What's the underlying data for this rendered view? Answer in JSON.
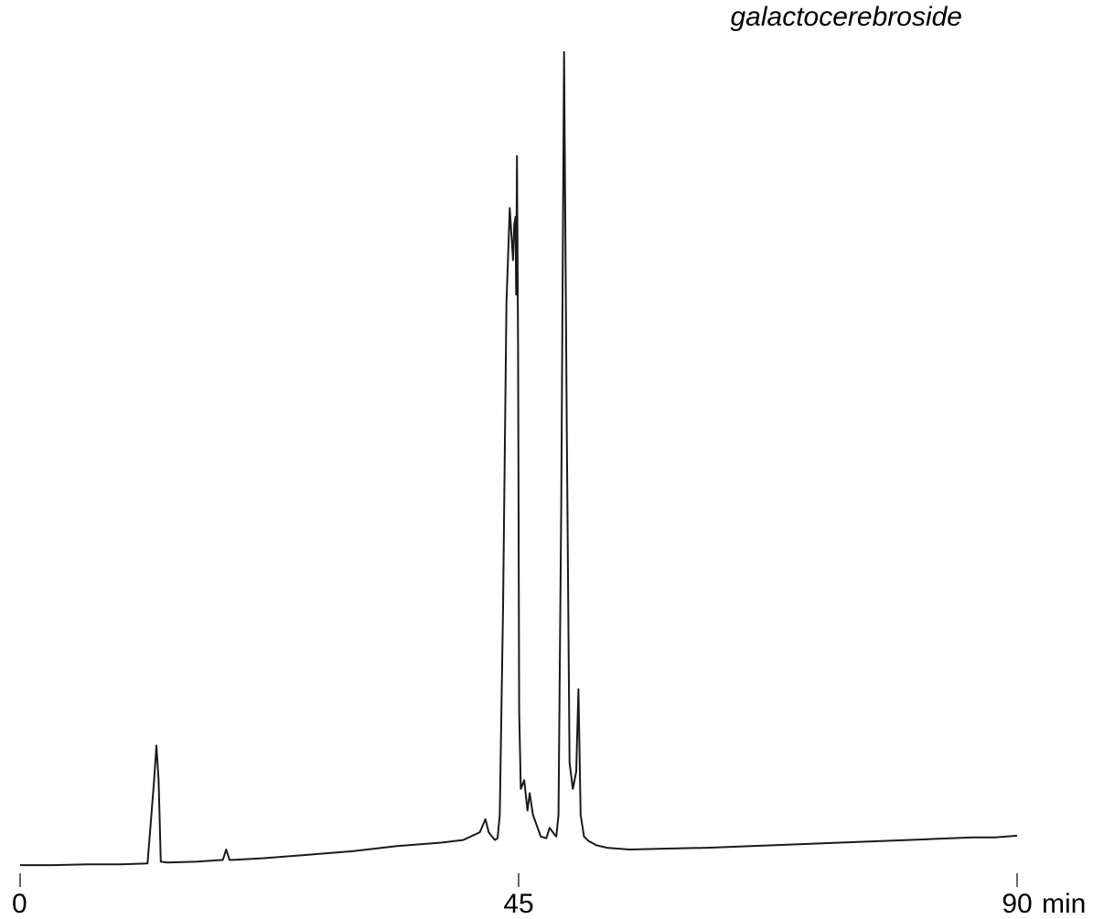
{
  "chart_data": {
    "type": "line",
    "title": "",
    "xlabel": "",
    "ylabel": "",
    "x_unit": "min",
    "xlim": [
      0,
      90
    ],
    "ylim": [
      0,
      1
    ],
    "grid": false,
    "legend": "none",
    "annotations": [
      "galactocerebroside"
    ],
    "x_ticks": [
      {
        "value": 0,
        "label": "0"
      },
      {
        "value": 45,
        "label": "45"
      },
      {
        "value": 90,
        "label": "90"
      }
    ],
    "series": [
      {
        "color": "#1a1a1a",
        "x": [
          0,
          3,
          6,
          9,
          11.5,
          12.1,
          12.3,
          12.5,
          12.7,
          13.3,
          16,
          18.3,
          18.6,
          18.9,
          19.2,
          22,
          26,
          30,
          34,
          38,
          40,
          41.5,
          42,
          42.3,
          42.6,
          42.85,
          43.1,
          43.3,
          43.6,
          43.9,
          44.2,
          44.5,
          44.6,
          44.72,
          44.78,
          44.85,
          44.95,
          45.05,
          45.2,
          45.5,
          45.8,
          46.0,
          46.3,
          47,
          47.5,
          47.8,
          48.2,
          48.4,
          48.6,
          48.85,
          49.1,
          49.35,
          49.6,
          49.9,
          50.2,
          50.4,
          50.6,
          50.9,
          51.3,
          51.6,
          52,
          53,
          55,
          58,
          62,
          66,
          70,
          74,
          78,
          82,
          86,
          88,
          90
        ],
        "y": [
          0.002,
          0.002,
          0.003,
          0.003,
          0.004,
          0.1,
          0.14,
          0.1,
          0.006,
          0.005,
          0.006,
          0.008,
          0.02,
          0.008,
          0.008,
          0.01,
          0.014,
          0.018,
          0.024,
          0.028,
          0.031,
          0.04,
          0.055,
          0.04,
          0.035,
          0.031,
          0.033,
          0.06,
          0.3,
          0.65,
          0.76,
          0.7,
          0.74,
          0.75,
          0.66,
          0.82,
          0.6,
          0.18,
          0.09,
          0.1,
          0.065,
          0.085,
          0.06,
          0.035,
          0.033,
          0.045,
          0.038,
          0.035,
          0.06,
          0.42,
          0.94,
          0.5,
          0.12,
          0.09,
          0.11,
          0.205,
          0.06,
          0.035,
          0.03,
          0.028,
          0.025,
          0.022,
          0.02,
          0.021,
          0.022,
          0.024,
          0.026,
          0.028,
          0.03,
          0.032,
          0.034,
          0.034,
          0.036
        ]
      }
    ]
  }
}
